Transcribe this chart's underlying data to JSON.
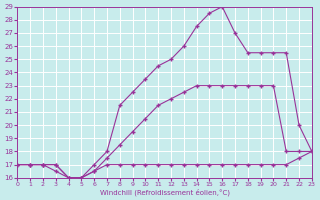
{
  "xlabel": "Windchill (Refroidissement éolien,°C)",
  "xlim": [
    0,
    23
  ],
  "ylim": [
    16,
    29
  ],
  "yticks": [
    16,
    17,
    18,
    19,
    20,
    21,
    22,
    23,
    24,
    25,
    26,
    27,
    28,
    29
  ],
  "xticks": [
    0,
    1,
    2,
    3,
    4,
    5,
    6,
    7,
    8,
    9,
    10,
    11,
    12,
    13,
    14,
    15,
    16,
    17,
    18,
    19,
    20,
    21,
    22,
    23
  ],
  "bg_color": "#c8ecec",
  "line_color": "#993399",
  "grid_color": "#ffffff",
  "line1_x": [
    0,
    1,
    2,
    3,
    4,
    5,
    6,
    7,
    8,
    9,
    10,
    11,
    12,
    13,
    14,
    15,
    16,
    17,
    18,
    19,
    20,
    21,
    22,
    23
  ],
  "line1_y": [
    17,
    17,
    17,
    17,
    16,
    16,
    16.5,
    17,
    17,
    17,
    17,
    17,
    17,
    17,
    17,
    17,
    17,
    17,
    17,
    17,
    17,
    17,
    17.5,
    18
  ],
  "line2_x": [
    0,
    1,
    2,
    3,
    4,
    5,
    6,
    7,
    8,
    9,
    10,
    11,
    12,
    13,
    14,
    15,
    16,
    17,
    18,
    19,
    20,
    21,
    22,
    23
  ],
  "line2_y": [
    17,
    17,
    17,
    17,
    16,
    16,
    16.5,
    17.5,
    18.5,
    19.5,
    20.5,
    21.5,
    22,
    22.5,
    23,
    23,
    23,
    23,
    23,
    23,
    23,
    18,
    18,
    18
  ],
  "line3_x": [
    0,
    1,
    2,
    3,
    4,
    5,
    6,
    7,
    8,
    9,
    10,
    11,
    12,
    13,
    14,
    15,
    16,
    17,
    18,
    19,
    20,
    21,
    22,
    23
  ],
  "line3_y": [
    17,
    17,
    17,
    16.5,
    16,
    16,
    17,
    18,
    21.5,
    22.5,
    23.5,
    24.5,
    25,
    26,
    27.5,
    28.5,
    29,
    27,
    25.5,
    25.5,
    25.5,
    25.5,
    20,
    18
  ]
}
